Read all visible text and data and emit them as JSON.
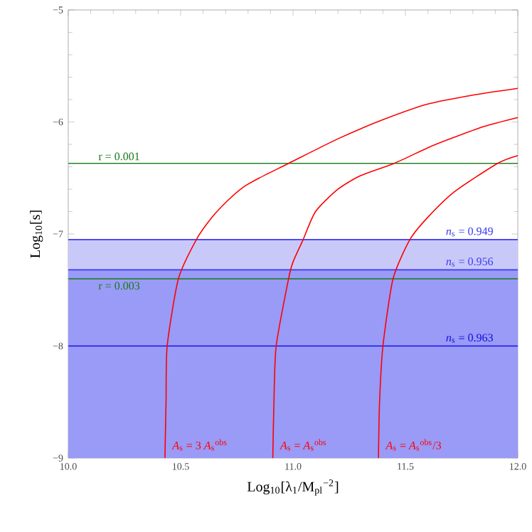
{
  "chart_data": {
    "type": "line",
    "xlabel": "Log$_{10}$[λ$_{1}$/M$_{pl}$$^{−2}$]",
    "ylabel": "Log$_{10}$[s]",
    "xlim": [
      10,
      12
    ],
    "ylim": [
      -9,
      -5
    ],
    "xticks": [
      {
        "value": 10,
        "label": "10.0"
      },
      {
        "value": 10.5,
        "label": "10.5"
      },
      {
        "value": 11,
        "label": "11.0"
      },
      {
        "value": 11.5,
        "label": "11.5"
      },
      {
        "value": 12,
        "label": "12.0"
      }
    ],
    "yticks": [
      {
        "value": -9,
        "label": "−9"
      },
      {
        "value": -8,
        "label": "−8"
      },
      {
        "value": -7,
        "label": "−7"
      },
      {
        "value": -6,
        "label": "−6"
      },
      {
        "value": -5,
        "label": "−5"
      }
    ],
    "grid": false,
    "marker": "none",
    "line_style": "solid",
    "series": [
      {
        "name": "r = 0.001",
        "color": "#157a15",
        "x": [
          10,
          12
        ],
        "values": [
          -6.37,
          -6.37
        ]
      },
      {
        "name": "r = 0.003",
        "color": "#157a15",
        "x": [
          10,
          12
        ],
        "values": [
          -7.4,
          -7.4
        ]
      },
      {
        "name": "*n*$_{s}$ = 0.949",
        "color": "#3a3af5",
        "x": [
          10,
          12
        ],
        "values": [
          -7.05,
          -7.05
        ]
      },
      {
        "name": "*n*$_{s}$ = 0.956",
        "color": "#3a3af5",
        "x": [
          10,
          12
        ],
        "values": [
          -7.32,
          -7.32
        ]
      },
      {
        "name": "*n*$_{s}$ = 0.963",
        "color": "#1010e0",
        "x": [
          10,
          12
        ],
        "values": [
          -8,
          -8
        ]
      },
      {
        "name": "*A*$_{s}$ = 3 *A*$_{s}$$^{obs}$",
        "color": "#ff0000",
        "x": [
          10.43,
          10.435,
          10.44,
          10.49,
          10.57,
          10.64,
          10.71,
          10.78,
          10.85,
          10.98,
          11.2,
          11.4,
          11.6,
          11.8,
          12
        ],
        "values": [
          -9,
          -8.5,
          -8,
          -7.4,
          -7.05,
          -6.85,
          -6.7,
          -6.58,
          -6.5,
          -6.37,
          -6.15,
          -5.98,
          -5.84,
          -5.76,
          -5.7
        ]
      },
      {
        "name": "*A*$_{s}$ = *A*$_{s}$$^{obs}$",
        "color": "#ff0000",
        "x": [
          10.91,
          10.915,
          10.925,
          10.98,
          11.0,
          11.045,
          11.1,
          11.2,
          11.3,
          11.45,
          11.6,
          11.7,
          11.85,
          12
        ],
        "values": [
          -9,
          -8.5,
          -8,
          -7.4,
          -7.25,
          -7.05,
          -6.8,
          -6.6,
          -6.48,
          -6.37,
          -6.23,
          -6.15,
          -6.04,
          -5.96
        ]
      },
      {
        "name": "*A*$_{s}$ = *A*$_{s}$$^{obs}$/3",
        "color": "#ff0000",
        "x": [
          11.38,
          11.385,
          11.4,
          11.445,
          11.52,
          11.6,
          11.72,
          11.91,
          12
        ],
        "values": [
          -9,
          -8.5,
          -8,
          -7.4,
          -7.05,
          -6.85,
          -6.62,
          -6.37,
          -6.3
        ]
      }
    ],
    "bands": [
      {
        "axis": "y",
        "from": -9,
        "to": -7.05,
        "color": "#c9c9f9"
      },
      {
        "axis": "y",
        "from": -9,
        "to": -7.32,
        "color": "#9a9af7"
      }
    ]
  }
}
